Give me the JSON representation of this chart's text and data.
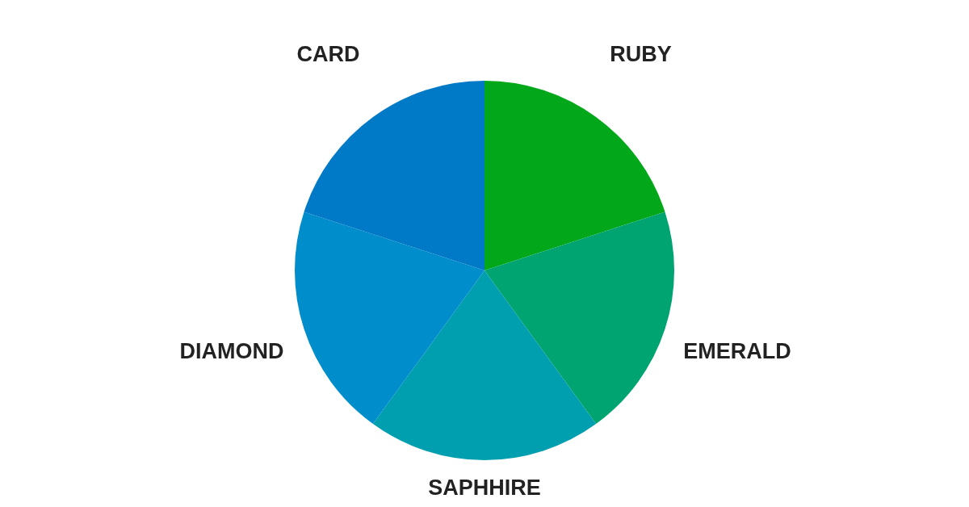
{
  "chart_data": {
    "type": "pie",
    "categories": [
      "RUBY",
      "EMERALD",
      "SAPHHIRE",
      "DIAMOND",
      "CARD"
    ],
    "values": [
      20,
      20,
      20,
      20,
      20
    ],
    "colors": [
      "#02a81a",
      "#00a470",
      "#009fb0",
      "#008dcc",
      "#0079c7"
    ],
    "legend": false
  }
}
